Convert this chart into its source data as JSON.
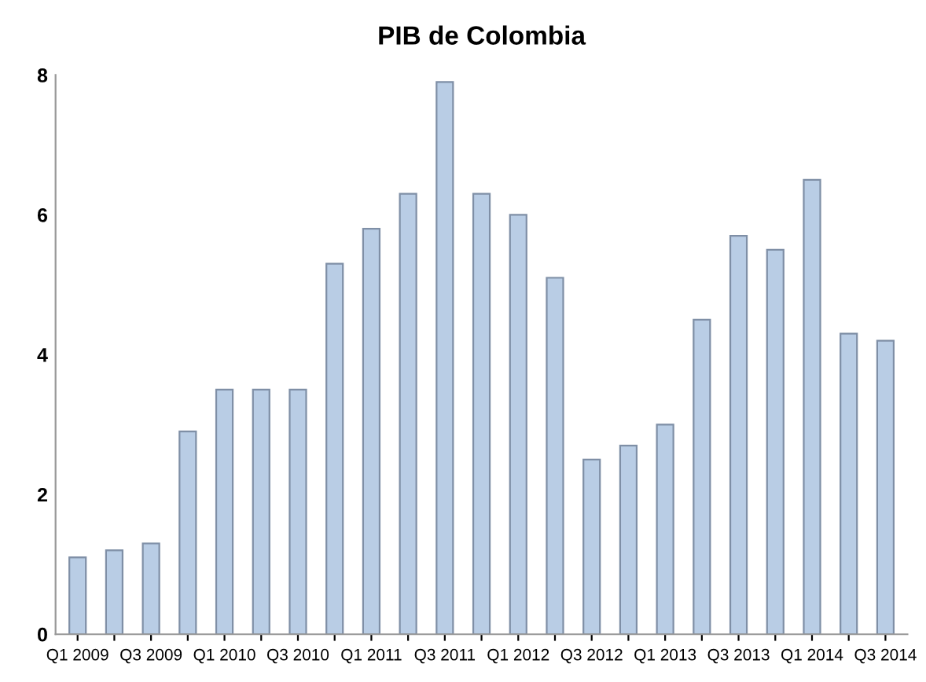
{
  "chart_data": {
    "type": "bar",
    "title": "PIB de Colombia",
    "categories": [
      "Q1 2009",
      null,
      "Q3 2009",
      null,
      "Q1 2010",
      null,
      "Q3 2010",
      null,
      "Q1 2011",
      null,
      "Q3 2011",
      null,
      "Q1 2012",
      null,
      "Q3 2012",
      null,
      "Q1 2013",
      null,
      "Q3 2013",
      null,
      "Q1 2014",
      null,
      "Q3 2014"
    ],
    "values": [
      1.1,
      1.2,
      1.3,
      2.9,
      3.5,
      3.5,
      3.5,
      5.3,
      5.8,
      6.3,
      7.9,
      6.3,
      6.0,
      5.1,
      2.5,
      2.7,
      3.0,
      4.5,
      5.7,
      5.5,
      6.5,
      4.3,
      4.2
    ],
    "color": "#b9cde5",
    "ylim": [
      0,
      8
    ],
    "yticks": [
      0,
      2,
      4,
      6,
      8
    ],
    "grid": false
  }
}
